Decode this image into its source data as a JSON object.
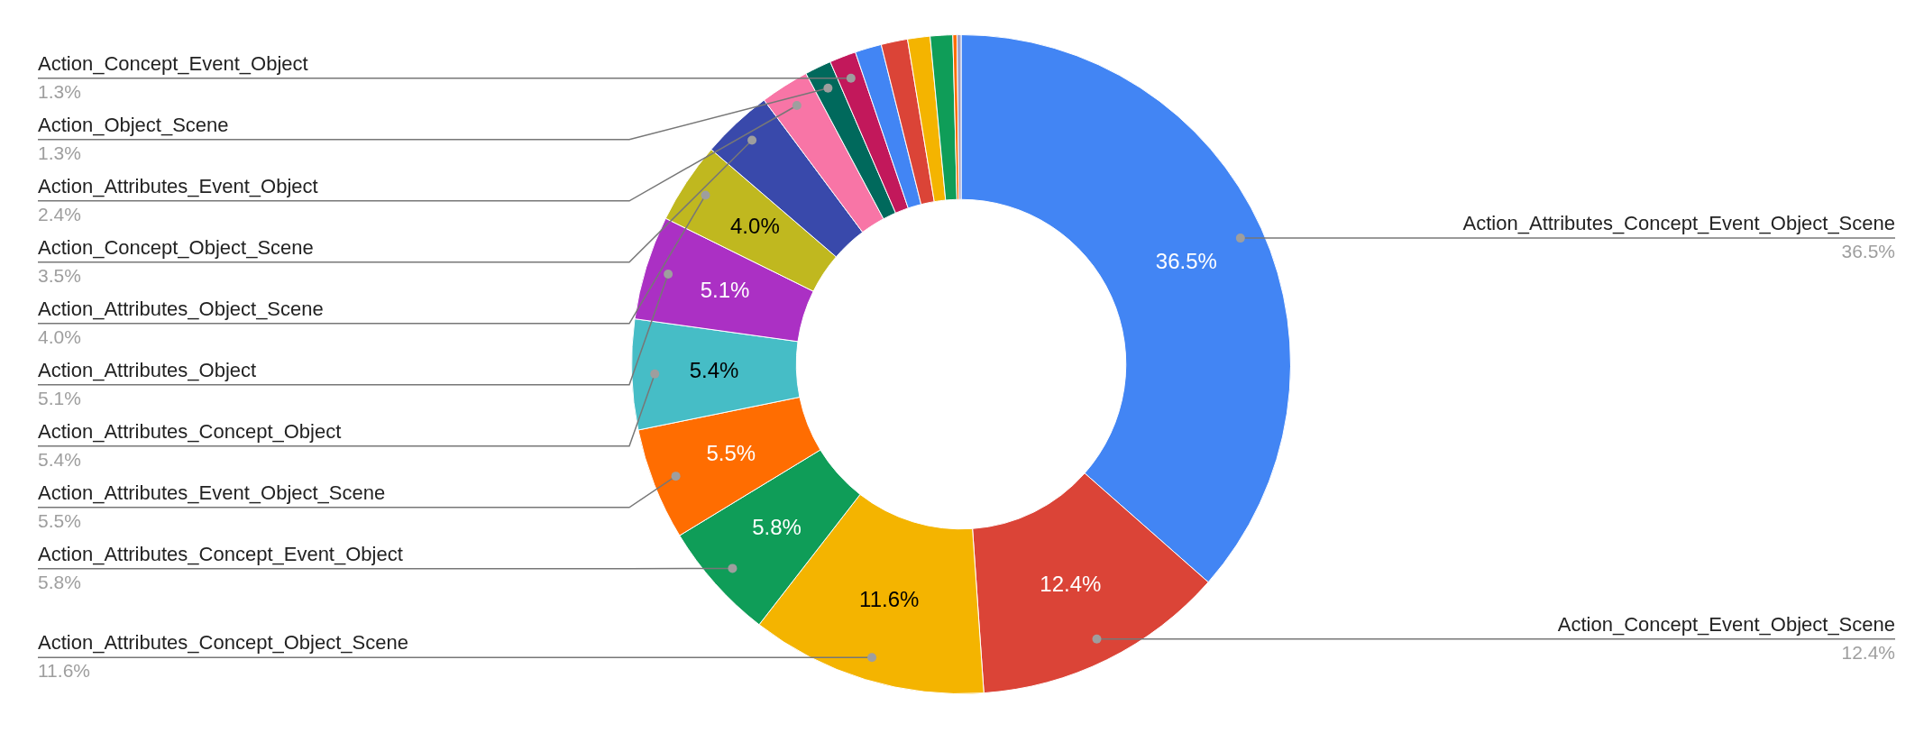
{
  "chart_data": {
    "type": "donut",
    "legend": false,
    "categories": [
      "Action_Attributes_Concept_Event_Object_Scene",
      "Action_Concept_Event_Object_Scene",
      "Action_Attributes_Concept_Object_Scene",
      "Action_Attributes_Concept_Event_Object",
      "Action_Attributes_Event_Object_Scene",
      "Action_Attributes_Concept_Object",
      "Action_Attributes_Object",
      "Action_Attributes_Object_Scene",
      "Action_Concept_Object_Scene",
      "Action_Attributes_Event_Object",
      "Action_Object_Scene",
      "Action_Concept_Event_Object",
      null,
      null,
      null,
      null,
      null,
      null
    ],
    "values": [
      36.5,
      12.4,
      11.6,
      5.8,
      5.5,
      5.4,
      5.1,
      4.0,
      3.5,
      2.4,
      1.3,
      1.3,
      1.3,
      1.3,
      1.1,
      1.1,
      0.2,
      0.2
    ],
    "value_labels": [
      "36.5%",
      "12.4%",
      "11.6%",
      "5.8%",
      "5.5%",
      "5.4%",
      "5.1%",
      "4.0%",
      "3.5%",
      "2.4%",
      "1.3%",
      "1.3%",
      null,
      null,
      null,
      null,
      null,
      null
    ],
    "colors": [
      "#4285f4",
      "#db4437",
      "#f4b400",
      "#0f9d58",
      "#ff6d01",
      "#46bdc6",
      "#ab30c4",
      "#c0b81f",
      "#3949ab",
      "#f875a6",
      "#00695c",
      "#c2185b",
      "#4285f4",
      "#db4437",
      "#f4b400",
      "#0f9d58",
      "#ff6d01",
      "#9e9ec8"
    ]
  }
}
